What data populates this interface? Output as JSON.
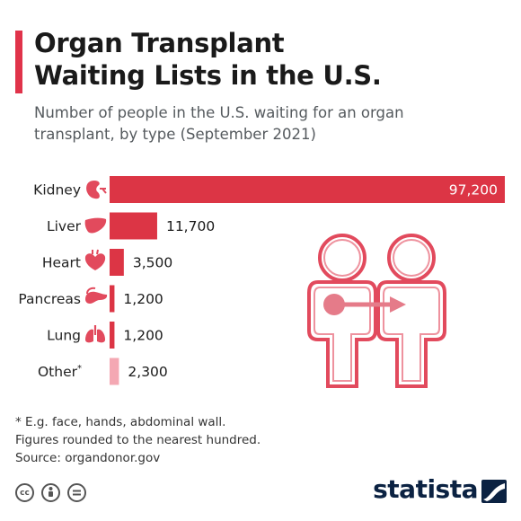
{
  "header": {
    "title_line1": "Organ Transplant",
    "title_line2": "Waiting Lists in the U.S.",
    "subtitle_line1": "Number of people in the U.S. waiting for an organ",
    "subtitle_line2": "transplant, by type (September 2021)"
  },
  "colors": {
    "accent": "#e0334a",
    "bar": "#dc3545",
    "bar_light": "#f4a8b3",
    "icon": "#e24a5d",
    "brand": "#0b2242"
  },
  "chart_data": {
    "type": "bar",
    "orientation": "horizontal",
    "categories": [
      "Kidney",
      "Liver",
      "Heart",
      "Pancreas",
      "Lung",
      "Other*"
    ],
    "values": [
      97200,
      11700,
      3500,
      1200,
      1200,
      2300
    ],
    "value_labels": [
      "97,200",
      "11,700",
      "3,500",
      "1,200",
      "1,200",
      "2,300"
    ],
    "icons": [
      "kidney-icon",
      "liver-icon",
      "heart-icon",
      "pancreas-icon",
      "lung-icon",
      ""
    ],
    "title": "",
    "xlabel": "",
    "ylabel": "",
    "xlim": [
      0,
      97200
    ],
    "grid": false,
    "legend": "none"
  },
  "footnotes": {
    "note": "* E.g. face, hands, abdominal wall.",
    "rounding": "Figures rounded to the nearest hundred.",
    "source": "Source: organdonor.gov"
  },
  "license_icons": [
    "cc-icon",
    "attribution-icon",
    "no-derivatives-icon"
  ],
  "brand": {
    "name": "statista"
  }
}
